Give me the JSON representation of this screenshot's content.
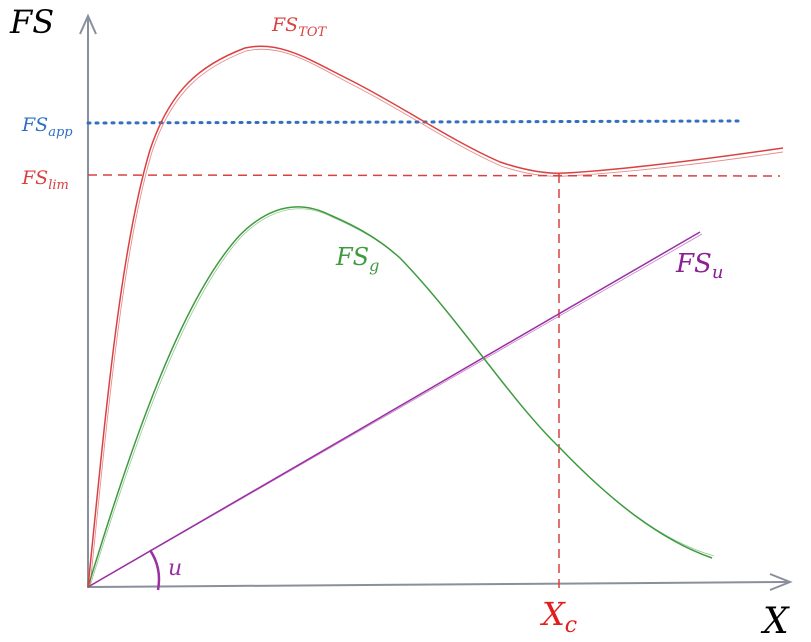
{
  "axes": {
    "y_label_main": "FS",
    "x_label": "X",
    "color": "#8a8f9c"
  },
  "curves": {
    "total": {
      "label_main": "FS",
      "label_sub": "TOT",
      "color": "#d94141"
    },
    "g": {
      "label_main": "FS",
      "label_sub": "g",
      "color": "#3f9b3f"
    },
    "u": {
      "label_main": "FS",
      "label_sub": "u",
      "color": "#9b2fa4"
    }
  },
  "levels": {
    "app": {
      "label_main": "FS",
      "label_sub": "app",
      "color": "#2f6fc4"
    },
    "lim": {
      "label_main": "FS",
      "label_sub": "lim",
      "color": "#d94141"
    }
  },
  "critical": {
    "label_main": "X",
    "label_sub": "c",
    "color": "#e01e1e"
  },
  "angle": {
    "label": "u",
    "color": "#9b2fa4"
  }
}
